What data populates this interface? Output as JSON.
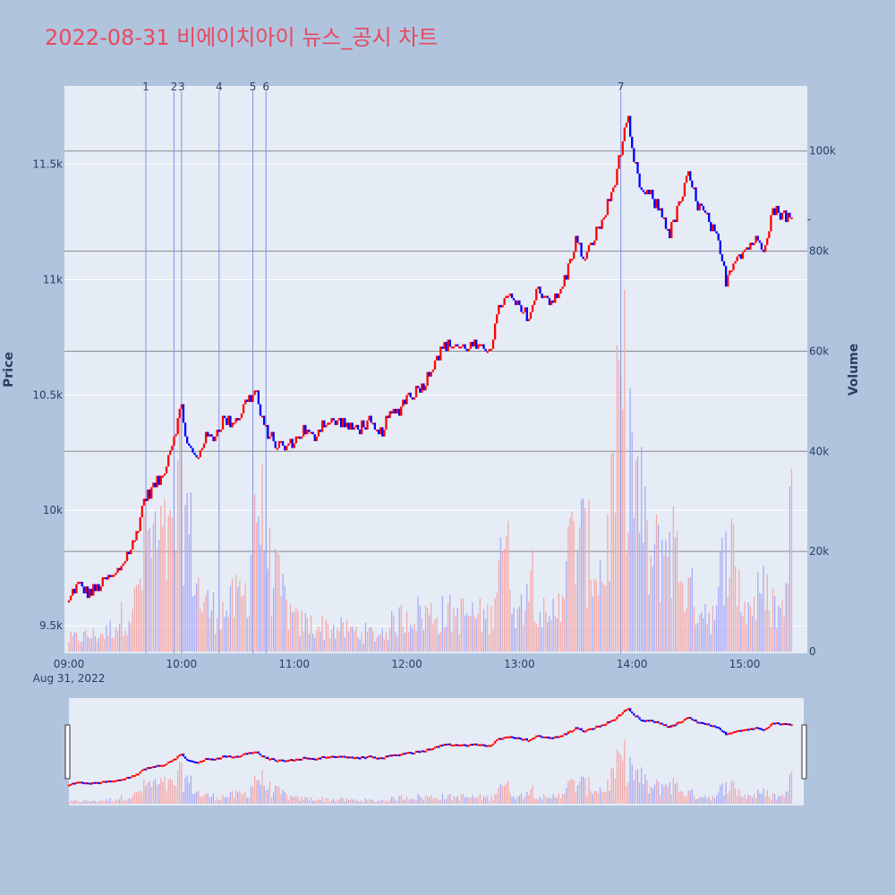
{
  "title": "2022-08-31 비에이치아이 뉴스_공시 차트",
  "colors": {
    "background": "#b0c4de",
    "plot_background": "#e5ecf6",
    "title": "#e8495e",
    "up": "#ff0000",
    "down": "#0000ff",
    "up_volume": "#f4a8a8",
    "down_volume": "#a8a8f4",
    "news_line": "#8090e8",
    "volume_grid": "#888888"
  },
  "chart_data": {
    "type": "candlestick",
    "title": "2022-08-31 비에이치아이 뉴스_공시 차트",
    "ylabel": "Price",
    "y2label": "Volume",
    "ylim": [
      9380,
      11840
    ],
    "y2lim": [
      0,
      113000
    ],
    "yticks": [
      {
        "value": 9500,
        "label": "9.5k"
      },
      {
        "value": 10000,
        "label": "10k"
      },
      {
        "value": 10500,
        "label": "10.5k"
      },
      {
        "value": 11000,
        "label": "11k"
      },
      {
        "value": 11500,
        "label": "11.5k"
      }
    ],
    "y2ticks": [
      {
        "value": 0,
        "label": "0"
      },
      {
        "value": 20000,
        "label": "20k"
      },
      {
        "value": 40000,
        "label": "40k"
      },
      {
        "value": 60000,
        "label": "60k"
      },
      {
        "value": 80000,
        "label": "80k"
      },
      {
        "value": 100000,
        "label": "100k"
      }
    ],
    "xlim": [
      "09:00",
      "15:30"
    ],
    "xticks": [
      "09:00",
      "10:00",
      "11:00",
      "12:00",
      "13:00",
      "14:00",
      "15:00"
    ],
    "x_date_label": "Aug 31, 2022",
    "news_markers": [
      {
        "label": "1",
        "time": "09:41"
      },
      {
        "label": "2",
        "time": "09:56"
      },
      {
        "label": "3",
        "time": "10:00"
      },
      {
        "label": "4",
        "time": "10:20"
      },
      {
        "label": "5",
        "time": "10:38"
      },
      {
        "label": "6",
        "time": "10:45"
      },
      {
        "label": "7",
        "time": "13:54"
      }
    ],
    "price_anchors": [
      [
        "09:00",
        9600
      ],
      [
        "09:02",
        9650
      ],
      [
        "09:05",
        9680
      ],
      [
        "09:10",
        9640
      ],
      [
        "09:15",
        9660
      ],
      [
        "09:20",
        9700
      ],
      [
        "09:25",
        9720
      ],
      [
        "09:30",
        9790
      ],
      [
        "09:35",
        9870
      ],
      [
        "09:40",
        10050
      ],
      [
        "09:45",
        10100
      ],
      [
        "09:50",
        10150
      ],
      [
        "09:55",
        10300
      ],
      [
        "10:00",
        10450
      ],
      [
        "10:03",
        10280
      ],
      [
        "10:08",
        10220
      ],
      [
        "10:12",
        10310
      ],
      [
        "10:17",
        10320
      ],
      [
        "10:22",
        10390
      ],
      [
        "10:25",
        10380
      ],
      [
        "10:30",
        10400
      ],
      [
        "10:35",
        10480
      ],
      [
        "10:40",
        10520
      ],
      [
        "10:42",
        10400
      ],
      [
        "10:45",
        10350
      ],
      [
        "10:50",
        10290
      ],
      [
        "10:55",
        10270
      ],
      [
        "11:00",
        10300
      ],
      [
        "11:05",
        10350
      ],
      [
        "11:10",
        10310
      ],
      [
        "11:15",
        10380
      ],
      [
        "11:20",
        10380
      ],
      [
        "11:25",
        10390
      ],
      [
        "11:30",
        10350
      ],
      [
        "11:35",
        10360
      ],
      [
        "11:40",
        10380
      ],
      [
        "11:45",
        10320
      ],
      [
        "11:50",
        10400
      ],
      [
        "11:55",
        10430
      ],
      [
        "12:00",
        10490
      ],
      [
        "12:05",
        10520
      ],
      [
        "12:10",
        10560
      ],
      [
        "12:15",
        10660
      ],
      [
        "12:20",
        10710
      ],
      [
        "12:25",
        10720
      ],
      [
        "12:30",
        10700
      ],
      [
        "12:35",
        10720
      ],
      [
        "12:40",
        10690
      ],
      [
        "12:45",
        10720
      ],
      [
        "12:50",
        10900
      ],
      [
        "12:55",
        10920
      ],
      [
        "13:00",
        10870
      ],
      [
        "13:05",
        10840
      ],
      [
        "13:10",
        10960
      ],
      [
        "13:15",
        10920
      ],
      [
        "13:20",
        10910
      ],
      [
        "13:25",
        11020
      ],
      [
        "13:30",
        11170
      ],
      [
        "13:35",
        11080
      ],
      [
        "13:40",
        11190
      ],
      [
        "13:45",
        11270
      ],
      [
        "13:50",
        11400
      ],
      [
        "13:55",
        11600
      ],
      [
        "13:58",
        11680
      ],
      [
        "14:00",
        11550
      ],
      [
        "14:05",
        11380
      ],
      [
        "14:10",
        11360
      ],
      [
        "14:15",
        11300
      ],
      [
        "14:20",
        11200
      ],
      [
        "14:25",
        11320
      ],
      [
        "14:30",
        11450
      ],
      [
        "14:35",
        11330
      ],
      [
        "14:40",
        11260
      ],
      [
        "14:45",
        11180
      ],
      [
        "14:50",
        11000
      ],
      [
        "14:55",
        11100
      ],
      [
        "15:00",
        11130
      ],
      [
        "15:05",
        11170
      ],
      [
        "15:10",
        11150
      ],
      [
        "15:15",
        11300
      ],
      [
        "15:20",
        11290
      ],
      [
        "15:25",
        11260
      ]
    ],
    "volume_anchors": [
      [
        "09:00",
        3000
      ],
      [
        "09:20",
        4500
      ],
      [
        "09:35",
        11000
      ],
      [
        "09:42",
        26000
      ],
      [
        "09:55",
        24000
      ],
      [
        "10:00",
        40000
      ],
      [
        "10:10",
        12000
      ],
      [
        "10:20",
        9000
      ],
      [
        "10:35",
        14000
      ],
      [
        "10:40",
        38000
      ],
      [
        "10:47",
        20000
      ],
      [
        "11:00",
        7000
      ],
      [
        "11:30",
        5000
      ],
      [
        "11:45",
        4000
      ],
      [
        "12:00",
        9000
      ],
      [
        "12:30",
        9000
      ],
      [
        "12:45",
        8000
      ],
      [
        "12:50",
        30000
      ],
      [
        "13:00",
        8000
      ],
      [
        "13:05",
        22000
      ],
      [
        "13:15",
        5000
      ],
      [
        "13:30",
        28000
      ],
      [
        "13:45",
        18000
      ],
      [
        "13:55",
        60000
      ],
      [
        "14:00",
        45000
      ],
      [
        "14:10",
        20000
      ],
      [
        "14:20",
        28000
      ],
      [
        "14:30",
        14000
      ],
      [
        "14:45",
        8000
      ],
      [
        "14:50",
        30000
      ],
      [
        "15:00",
        10000
      ],
      [
        "15:10",
        14000
      ],
      [
        "15:20",
        9000
      ],
      [
        "15:30",
        66000
      ]
    ],
    "last_price": 11260
  }
}
